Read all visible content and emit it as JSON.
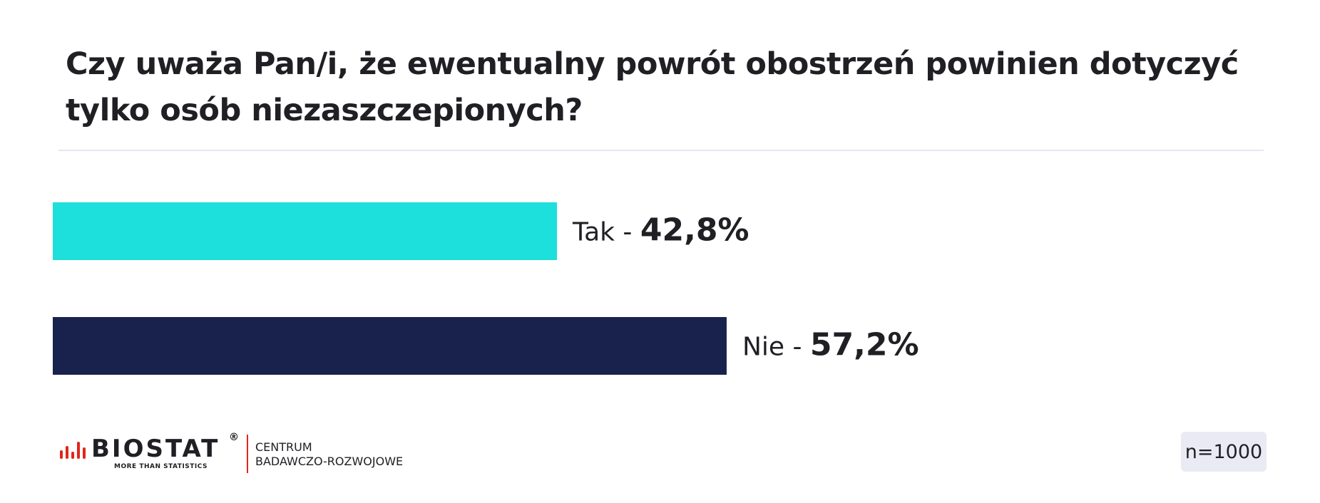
{
  "title": "Czy uważa Pan/i, że ewentualny powrót obostrzeń powinien dotyczyć tylko osób niezaszczepionych?",
  "chart_data": {
    "type": "bar",
    "orientation": "horizontal",
    "categories": [
      "Tak",
      "Nie"
    ],
    "values": [
      42.8,
      57.2
    ],
    "value_labels": [
      "42,8%",
      "57,2%"
    ],
    "colors": [
      "#1ddfdb",
      "#18224c"
    ],
    "xlim": [
      0,
      100
    ],
    "grid": false,
    "legend": "none"
  },
  "footer": {
    "brand": "BIOSTAT",
    "registered": "®",
    "tagline": "MORE THAN STATISTICS",
    "subtitle_line1": "CENTRUM",
    "subtitle_line2": "BADAWCZO-ROZWOJOWE",
    "brand_color": "#e1251b",
    "sample_size": "n=1000"
  }
}
